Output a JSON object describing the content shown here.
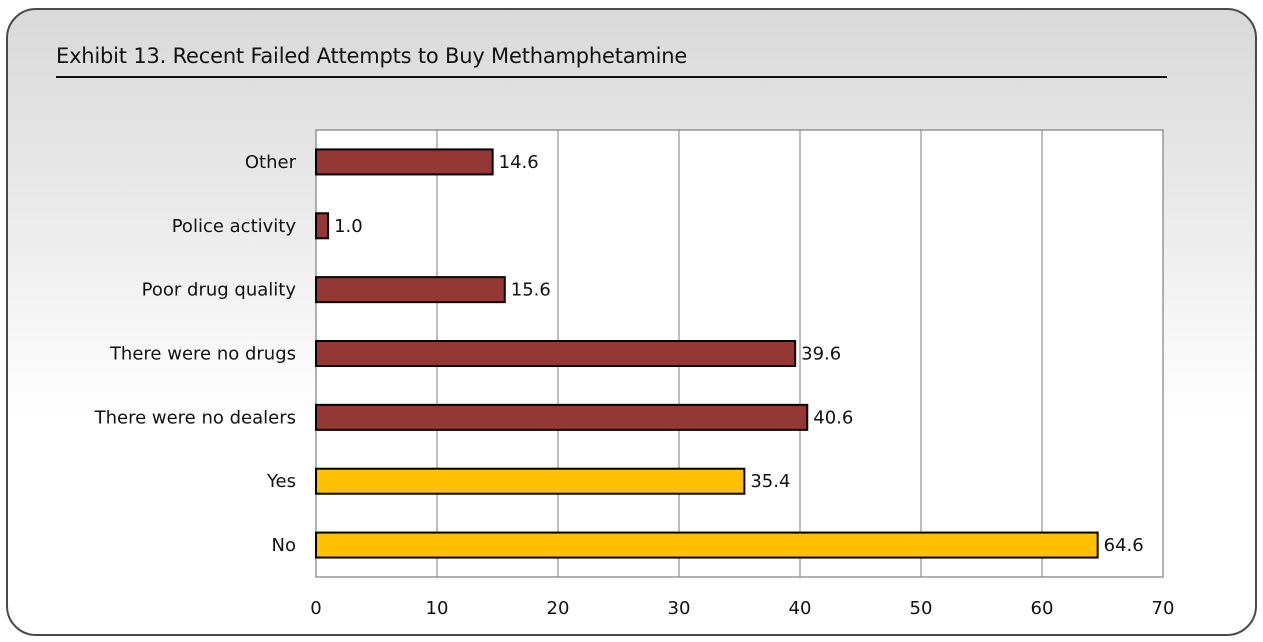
{
  "title": "Exhibit 13. Recent Failed Attempts to Buy Methamphetamine",
  "colors": {
    "maroon": "#953735",
    "gold": "#ffc000"
  },
  "chart_data": {
    "type": "bar",
    "orientation": "horizontal",
    "title": "Exhibit 13. Recent Failed Attempts to Buy Methamphetamine",
    "xlim": [
      0,
      70
    ],
    "xticks": [
      0,
      10,
      20,
      30,
      40,
      50,
      60,
      70
    ],
    "grid": true,
    "categories": [
      "Other",
      "Police activity",
      "Poor drug quality",
      "There were no drugs",
      "There were no dealers",
      "Yes",
      "No"
    ],
    "values": [
      14.6,
      1.0,
      15.6,
      39.6,
      40.6,
      35.4,
      64.6
    ],
    "value_labels": [
      "14.6",
      "1.0",
      "15.6",
      "39.6",
      "40.6",
      "35.4",
      "64.6"
    ],
    "bar_colors": [
      "#953735",
      "#953735",
      "#953735",
      "#953735",
      "#953735",
      "#ffc000",
      "#ffc000"
    ]
  }
}
